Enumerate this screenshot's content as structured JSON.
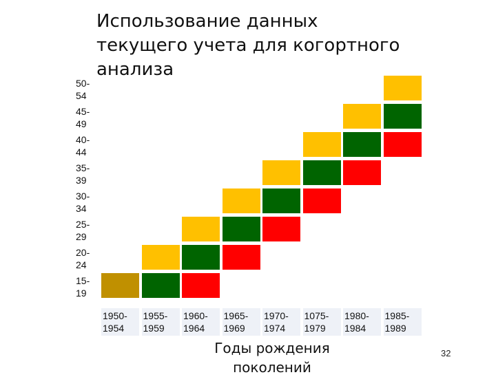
{
  "slide": {
    "title_lines": [
      "Использование данных",
      "текущего учета для когортного",
      "анализа"
    ],
    "page_number": "32",
    "x_title_lines": [
      "Годы рождения",
      "поколений"
    ]
  },
  "colors": {
    "gold": "#ffc000",
    "green": "#006400",
    "red": "#ff0000",
    "dark_gold": "#c09000",
    "header_bg": "#eef1f7"
  },
  "rows": [
    {
      "label_lines": [
        "50-",
        "54"
      ]
    },
    {
      "label_lines": [
        "45-",
        "49"
      ]
    },
    {
      "label_lines": [
        "40-",
        "44"
      ]
    },
    {
      "label_lines": [
        "35-",
        "39"
      ]
    },
    {
      "label_lines": [
        "30-",
        "34"
      ]
    },
    {
      "label_lines": [
        "25-",
        "29"
      ]
    },
    {
      "label_lines": [
        "20-",
        "24"
      ]
    },
    {
      "label_lines": [
        "15-",
        "19"
      ]
    }
  ],
  "columns": [
    {
      "label_lines": [
        "1950-",
        "1954"
      ]
    },
    {
      "label_lines": [
        "1955-",
        "1959"
      ]
    },
    {
      "label_lines": [
        "1960-",
        "1964"
      ]
    },
    {
      "label_lines": [
        "1965-",
        "1969"
      ]
    },
    {
      "label_lines": [
        "1970-",
        "1974"
      ]
    },
    {
      "label_lines": [
        "1075-",
        "1979"
      ]
    },
    {
      "label_lines": [
        "1980-",
        "1984"
      ]
    },
    {
      "label_lines": [
        "1985-",
        "1989"
      ]
    }
  ],
  "cells": [
    {
      "row": 7,
      "col": 0,
      "color": "dark_gold"
    },
    {
      "row": 7,
      "col": 1,
      "color": "green"
    },
    {
      "row": 7,
      "col": 2,
      "color": "red"
    },
    {
      "row": 6,
      "col": 1,
      "color": "gold"
    },
    {
      "row": 6,
      "col": 2,
      "color": "green"
    },
    {
      "row": 6,
      "col": 3,
      "color": "red"
    },
    {
      "row": 5,
      "col": 2,
      "color": "gold"
    },
    {
      "row": 5,
      "col": 3,
      "color": "green"
    },
    {
      "row": 5,
      "col": 4,
      "color": "red"
    },
    {
      "row": 4,
      "col": 3,
      "color": "gold"
    },
    {
      "row": 4,
      "col": 4,
      "color": "green"
    },
    {
      "row": 4,
      "col": 5,
      "color": "red"
    },
    {
      "row": 3,
      "col": 4,
      "color": "gold"
    },
    {
      "row": 3,
      "col": 5,
      "color": "green"
    },
    {
      "row": 3,
      "col": 6,
      "color": "red"
    },
    {
      "row": 2,
      "col": 5,
      "color": "gold"
    },
    {
      "row": 2,
      "col": 6,
      "color": "green"
    },
    {
      "row": 2,
      "col": 7,
      "color": "red"
    },
    {
      "row": 1,
      "col": 6,
      "color": "gold"
    },
    {
      "row": 1,
      "col": 7,
      "color": "green"
    },
    {
      "row": 0,
      "col": 7,
      "color": "gold"
    }
  ]
}
